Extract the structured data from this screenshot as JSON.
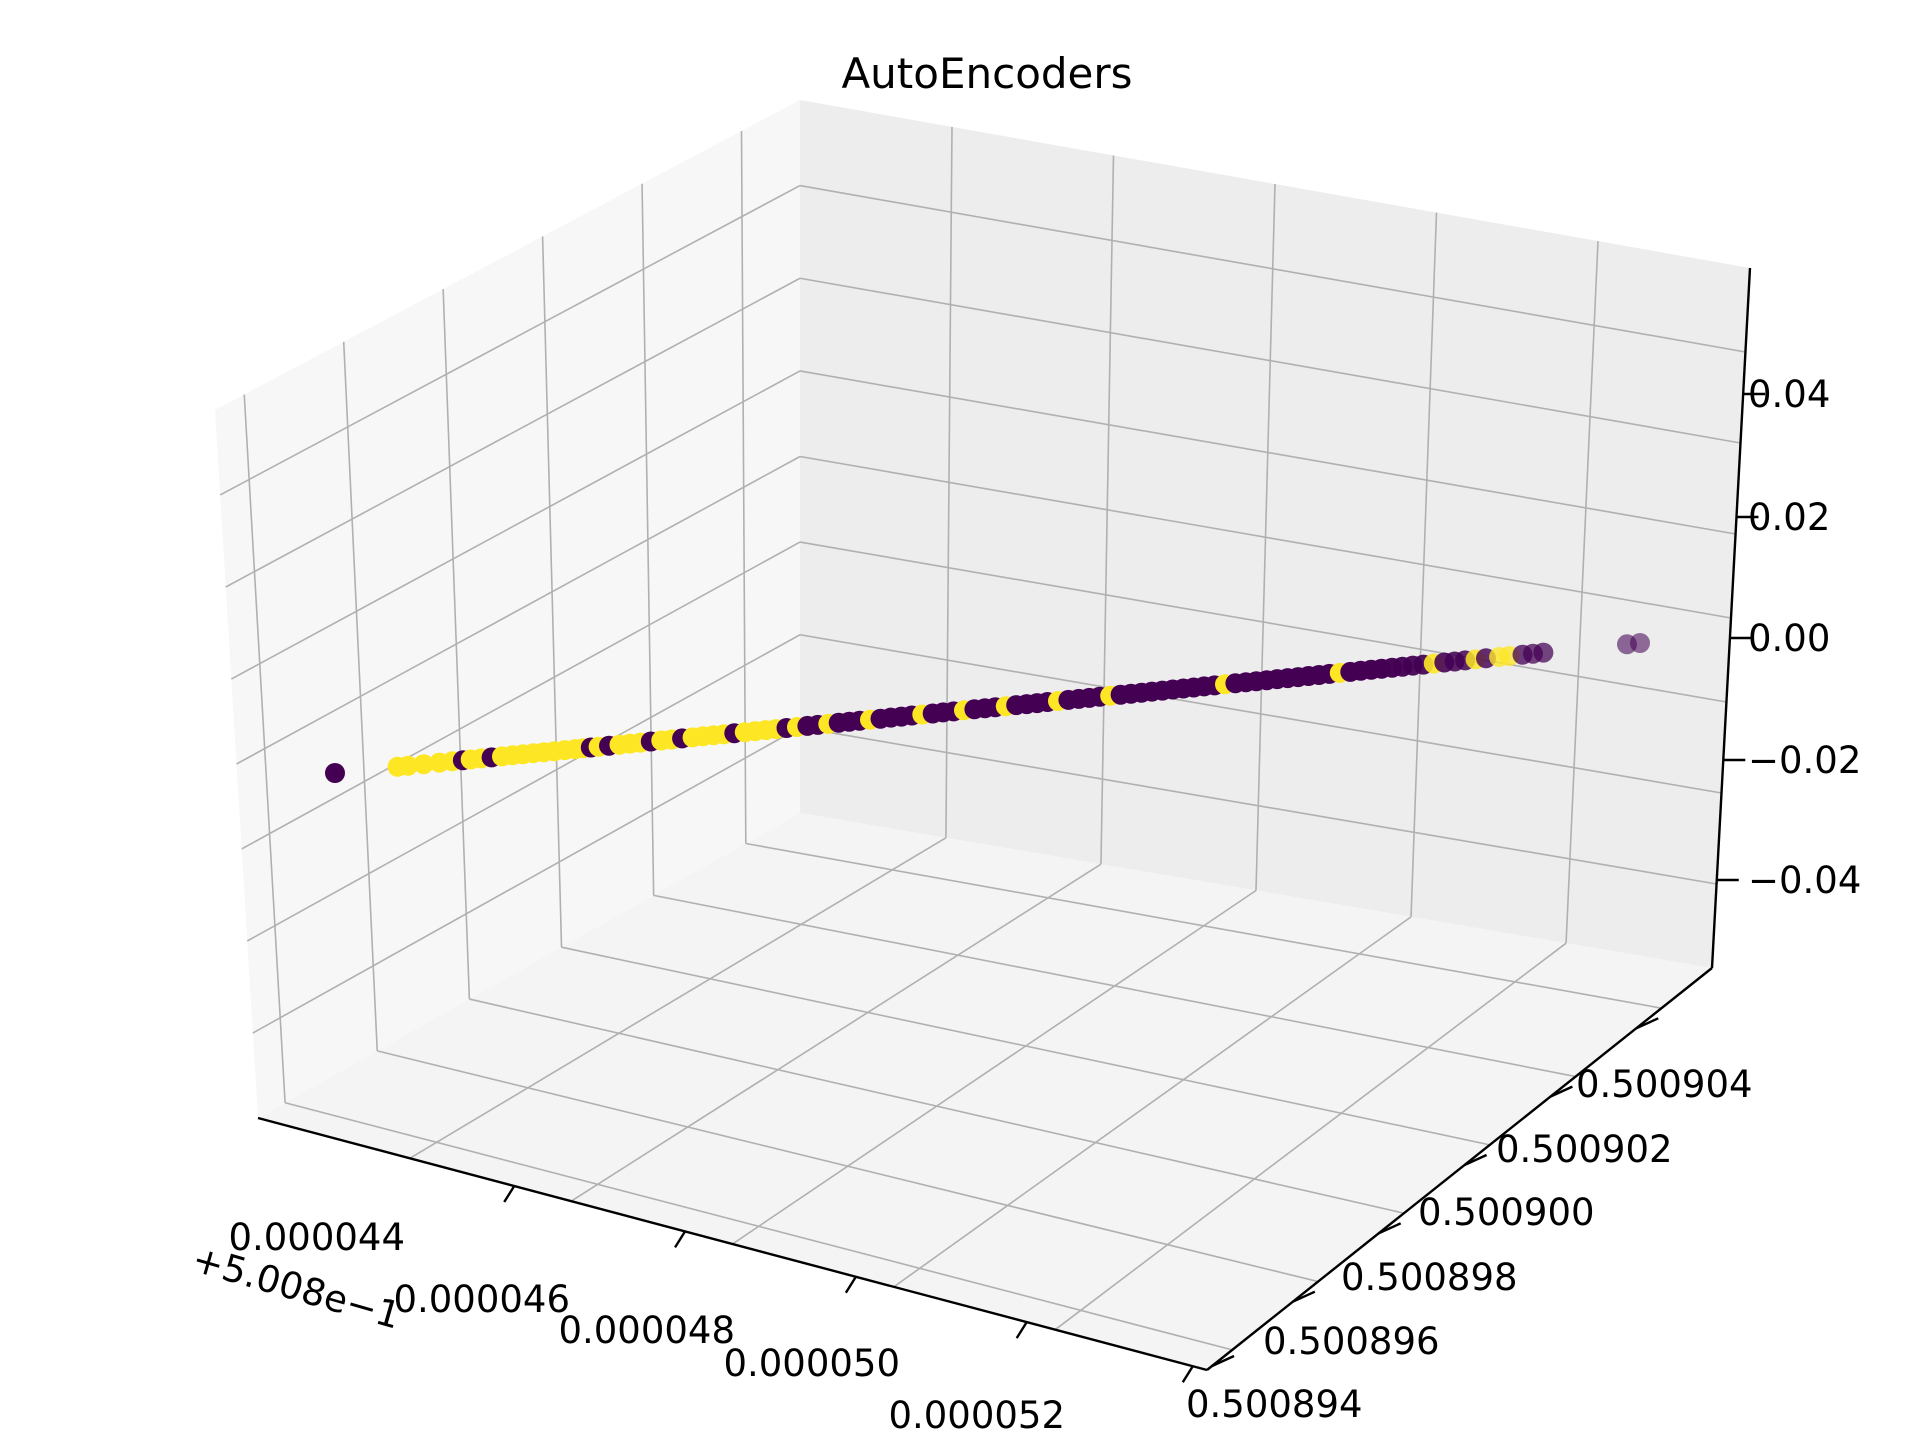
{
  "chart_data": {
    "type": "scatter",
    "projection": "3d",
    "title": "AutoEncoders",
    "x_axis": {
      "offset_label": "+5.008e−1",
      "ticks": [
        "0.000044",
        "0.000046",
        "0.000048",
        "0.000050",
        "0.000052"
      ]
    },
    "y_axis": {
      "ticks": [
        "0.500894",
        "0.500896",
        "0.500898",
        "0.500900",
        "0.500902",
        "0.500904"
      ]
    },
    "z_axis": {
      "ticks": [
        "−0.04",
        "−0.02",
        "0.00",
        "0.02",
        "0.04"
      ],
      "range": [
        -0.05,
        0.05
      ]
    },
    "grid": true,
    "colormap": "viridis",
    "class_colors": {
      "class_0": "#440154",
      "class_1": "#fde725"
    },
    "pane_colors": {
      "left": "#f7f7f7",
      "right": "#ededed",
      "floor": "#f4f4f4"
    },
    "z_value": 0.0,
    "points_note": "points lie along a single line at z = 0; t = 0 at min x / max y end, t = 1 at max x / min y end",
    "points": [
      {
        "t": 0.0,
        "class": 0
      },
      {
        "t": 0.048,
        "class": 1
      },
      {
        "t": 0.056,
        "class": 1
      },
      {
        "t": 0.068,
        "class": 1
      },
      {
        "t": 0.08,
        "class": 1
      },
      {
        "t": 0.09,
        "class": 1
      },
      {
        "t": 0.098,
        "class": 0
      },
      {
        "t": 0.104,
        "class": 1
      },
      {
        "t": 0.112,
        "class": 1
      },
      {
        "t": 0.12,
        "class": 0
      },
      {
        "t": 0.128,
        "class": 1
      },
      {
        "t": 0.136,
        "class": 1
      },
      {
        "t": 0.144,
        "class": 1
      },
      {
        "t": 0.152,
        "class": 1
      },
      {
        "t": 0.16,
        "class": 1
      },
      {
        "t": 0.168,
        "class": 1
      },
      {
        "t": 0.176,
        "class": 1
      },
      {
        "t": 0.184,
        "class": 1
      },
      {
        "t": 0.19,
        "class": 1
      },
      {
        "t": 0.196,
        "class": 0
      },
      {
        "t": 0.202,
        "class": 1
      },
      {
        "t": 0.21,
        "class": 0
      },
      {
        "t": 0.218,
        "class": 1
      },
      {
        "t": 0.226,
        "class": 1
      },
      {
        "t": 0.234,
        "class": 1
      },
      {
        "t": 0.242,
        "class": 0
      },
      {
        "t": 0.25,
        "class": 1
      },
      {
        "t": 0.258,
        "class": 1
      },
      {
        "t": 0.266,
        "class": 0
      },
      {
        "t": 0.274,
        "class": 1
      },
      {
        "t": 0.282,
        "class": 1
      },
      {
        "t": 0.29,
        "class": 1
      },
      {
        "t": 0.298,
        "class": 1
      },
      {
        "t": 0.306,
        "class": 0
      },
      {
        "t": 0.314,
        "class": 1
      },
      {
        "t": 0.322,
        "class": 1
      },
      {
        "t": 0.33,
        "class": 1
      },
      {
        "t": 0.338,
        "class": 1
      },
      {
        "t": 0.346,
        "class": 0
      },
      {
        "t": 0.354,
        "class": 1
      },
      {
        "t": 0.362,
        "class": 0
      },
      {
        "t": 0.37,
        "class": 0
      },
      {
        "t": 0.378,
        "class": 1
      },
      {
        "t": 0.386,
        "class": 0
      },
      {
        "t": 0.394,
        "class": 0
      },
      {
        "t": 0.402,
        "class": 0
      },
      {
        "t": 0.41,
        "class": 1
      },
      {
        "t": 0.418,
        "class": 0
      },
      {
        "t": 0.426,
        "class": 0
      },
      {
        "t": 0.434,
        "class": 0
      },
      {
        "t": 0.442,
        "class": 0
      },
      {
        "t": 0.45,
        "class": 1
      },
      {
        "t": 0.458,
        "class": 0
      },
      {
        "t": 0.466,
        "class": 0
      },
      {
        "t": 0.474,
        "class": 0
      },
      {
        "t": 0.482,
        "class": 1
      },
      {
        "t": 0.49,
        "class": 0
      },
      {
        "t": 0.498,
        "class": 0
      },
      {
        "t": 0.506,
        "class": 0
      },
      {
        "t": 0.514,
        "class": 1
      },
      {
        "t": 0.522,
        "class": 0
      },
      {
        "t": 0.53,
        "class": 0
      },
      {
        "t": 0.538,
        "class": 0
      },
      {
        "t": 0.546,
        "class": 0
      },
      {
        "t": 0.554,
        "class": 1
      },
      {
        "t": 0.562,
        "class": 0
      },
      {
        "t": 0.57,
        "class": 0
      },
      {
        "t": 0.578,
        "class": 0
      },
      {
        "t": 0.586,
        "class": 0
      },
      {
        "t": 0.594,
        "class": 1
      },
      {
        "t": 0.602,
        "class": 0
      },
      {
        "t": 0.61,
        "class": 0
      },
      {
        "t": 0.618,
        "class": 0
      },
      {
        "t": 0.626,
        "class": 0
      },
      {
        "t": 0.634,
        "class": 0
      },
      {
        "t": 0.642,
        "class": 0
      },
      {
        "t": 0.65,
        "class": 0
      },
      {
        "t": 0.658,
        "class": 0
      },
      {
        "t": 0.666,
        "class": 0
      },
      {
        "t": 0.674,
        "class": 0
      },
      {
        "t": 0.682,
        "class": 1
      },
      {
        "t": 0.69,
        "class": 0
      },
      {
        "t": 0.698,
        "class": 0
      },
      {
        "t": 0.706,
        "class": 0
      },
      {
        "t": 0.714,
        "class": 0
      },
      {
        "t": 0.722,
        "class": 0
      },
      {
        "t": 0.73,
        "class": 0
      },
      {
        "t": 0.738,
        "class": 0
      },
      {
        "t": 0.746,
        "class": 0
      },
      {
        "t": 0.754,
        "class": 0
      },
      {
        "t": 0.762,
        "class": 0
      },
      {
        "t": 0.77,
        "class": 1
      },
      {
        "t": 0.778,
        "class": 0
      },
      {
        "t": 0.786,
        "class": 0
      },
      {
        "t": 0.794,
        "class": 0
      },
      {
        "t": 0.802,
        "class": 0
      },
      {
        "t": 0.81,
        "class": 0
      },
      {
        "t": 0.818,
        "class": 0
      },
      {
        "t": 0.826,
        "class": 0
      },
      {
        "t": 0.834,
        "class": 0
      },
      {
        "t": 0.842,
        "class": 1
      },
      {
        "t": 0.85,
        "class": 0
      },
      {
        "t": 0.858,
        "class": 0
      },
      {
        "t": 0.866,
        "class": 0
      },
      {
        "t": 0.874,
        "class": 1
      },
      {
        "t": 0.882,
        "class": 0
      },
      {
        "t": 0.892,
        "class": 1
      },
      {
        "t": 0.9,
        "class": 1
      },
      {
        "t": 0.91,
        "class": 0
      },
      {
        "t": 0.918,
        "class": 0
      },
      {
        "t": 0.926,
        "class": 0
      },
      {
        "t": 0.99,
        "class": 0
      },
      {
        "t": 1.0,
        "class": 0
      }
    ]
  }
}
